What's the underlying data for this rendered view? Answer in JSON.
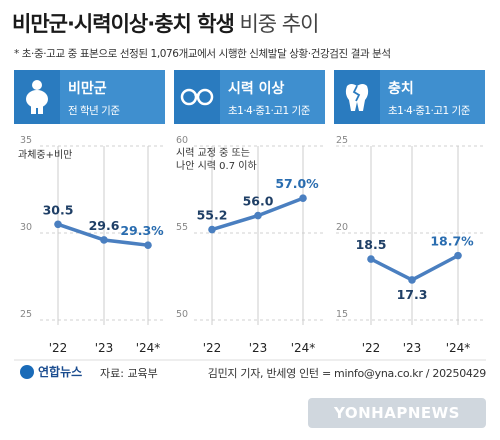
{
  "header": {
    "title_bold": "비만군·시력이상·충치 학생",
    "title_light": " 비중 추이",
    "subtitle": "* 초·중·고교 중 표본으로 선정된 1,076개교에서 시행한 신체발달 상황·건강검진 결과 분석"
  },
  "panels": [
    {
      "title": "비만군",
      "sub": "전 학년 기준",
      "icon": "person-obese-icon"
    },
    {
      "title": "시력 이상",
      "sub": "초1·4·중1·고1 기준",
      "icon": "eyeglasses-icon"
    },
    {
      "title": "충치",
      "sub": "초1·4·중1·고1 기준",
      "icon": "broken-tooth-icon"
    }
  ],
  "chart_data": [
    {
      "type": "line",
      "categories": [
        "'22",
        "'23",
        "'24*"
      ],
      "values": [
        30.5,
        29.6,
        29.3
      ],
      "data_labels": [
        "30.5",
        "29.6",
        "29.3%"
      ],
      "ylim": [
        25,
        35
      ],
      "y_ticks": [
        "35",
        "30",
        "25"
      ],
      "annotation": "과체중+비만"
    },
    {
      "type": "line",
      "categories": [
        "'22",
        "'23",
        "'24*"
      ],
      "values": [
        55.2,
        56.0,
        57.0
      ],
      "data_labels": [
        "55.2",
        "56.0",
        "57.0%"
      ],
      "ylim": [
        50,
        60
      ],
      "y_ticks": [
        "60",
        "55",
        "50"
      ],
      "annotation": "시력 교정 중 또는\n나안 시력 0.7 이하"
    },
    {
      "type": "line",
      "categories": [
        "'22",
        "'23",
        "'24*"
      ],
      "values": [
        18.5,
        17.3,
        18.7
      ],
      "data_labels": [
        "18.5",
        "17.3",
        "18.7%"
      ],
      "ylim": [
        15,
        25
      ],
      "y_ticks": [
        "25",
        "20",
        "15"
      ],
      "annotation": ""
    }
  ],
  "footer": {
    "logo": "연합뉴스",
    "source": "자료: 교육부",
    "credit": "김민지 기자, 반세영 인턴 = minfo@yna.co.kr / 20250429",
    "watermark": "YONHAPNEWS"
  },
  "colors": {
    "line": "#4a7fc0",
    "header_dark": "#2a7bbf",
    "header_light": "#3f8fcf"
  }
}
